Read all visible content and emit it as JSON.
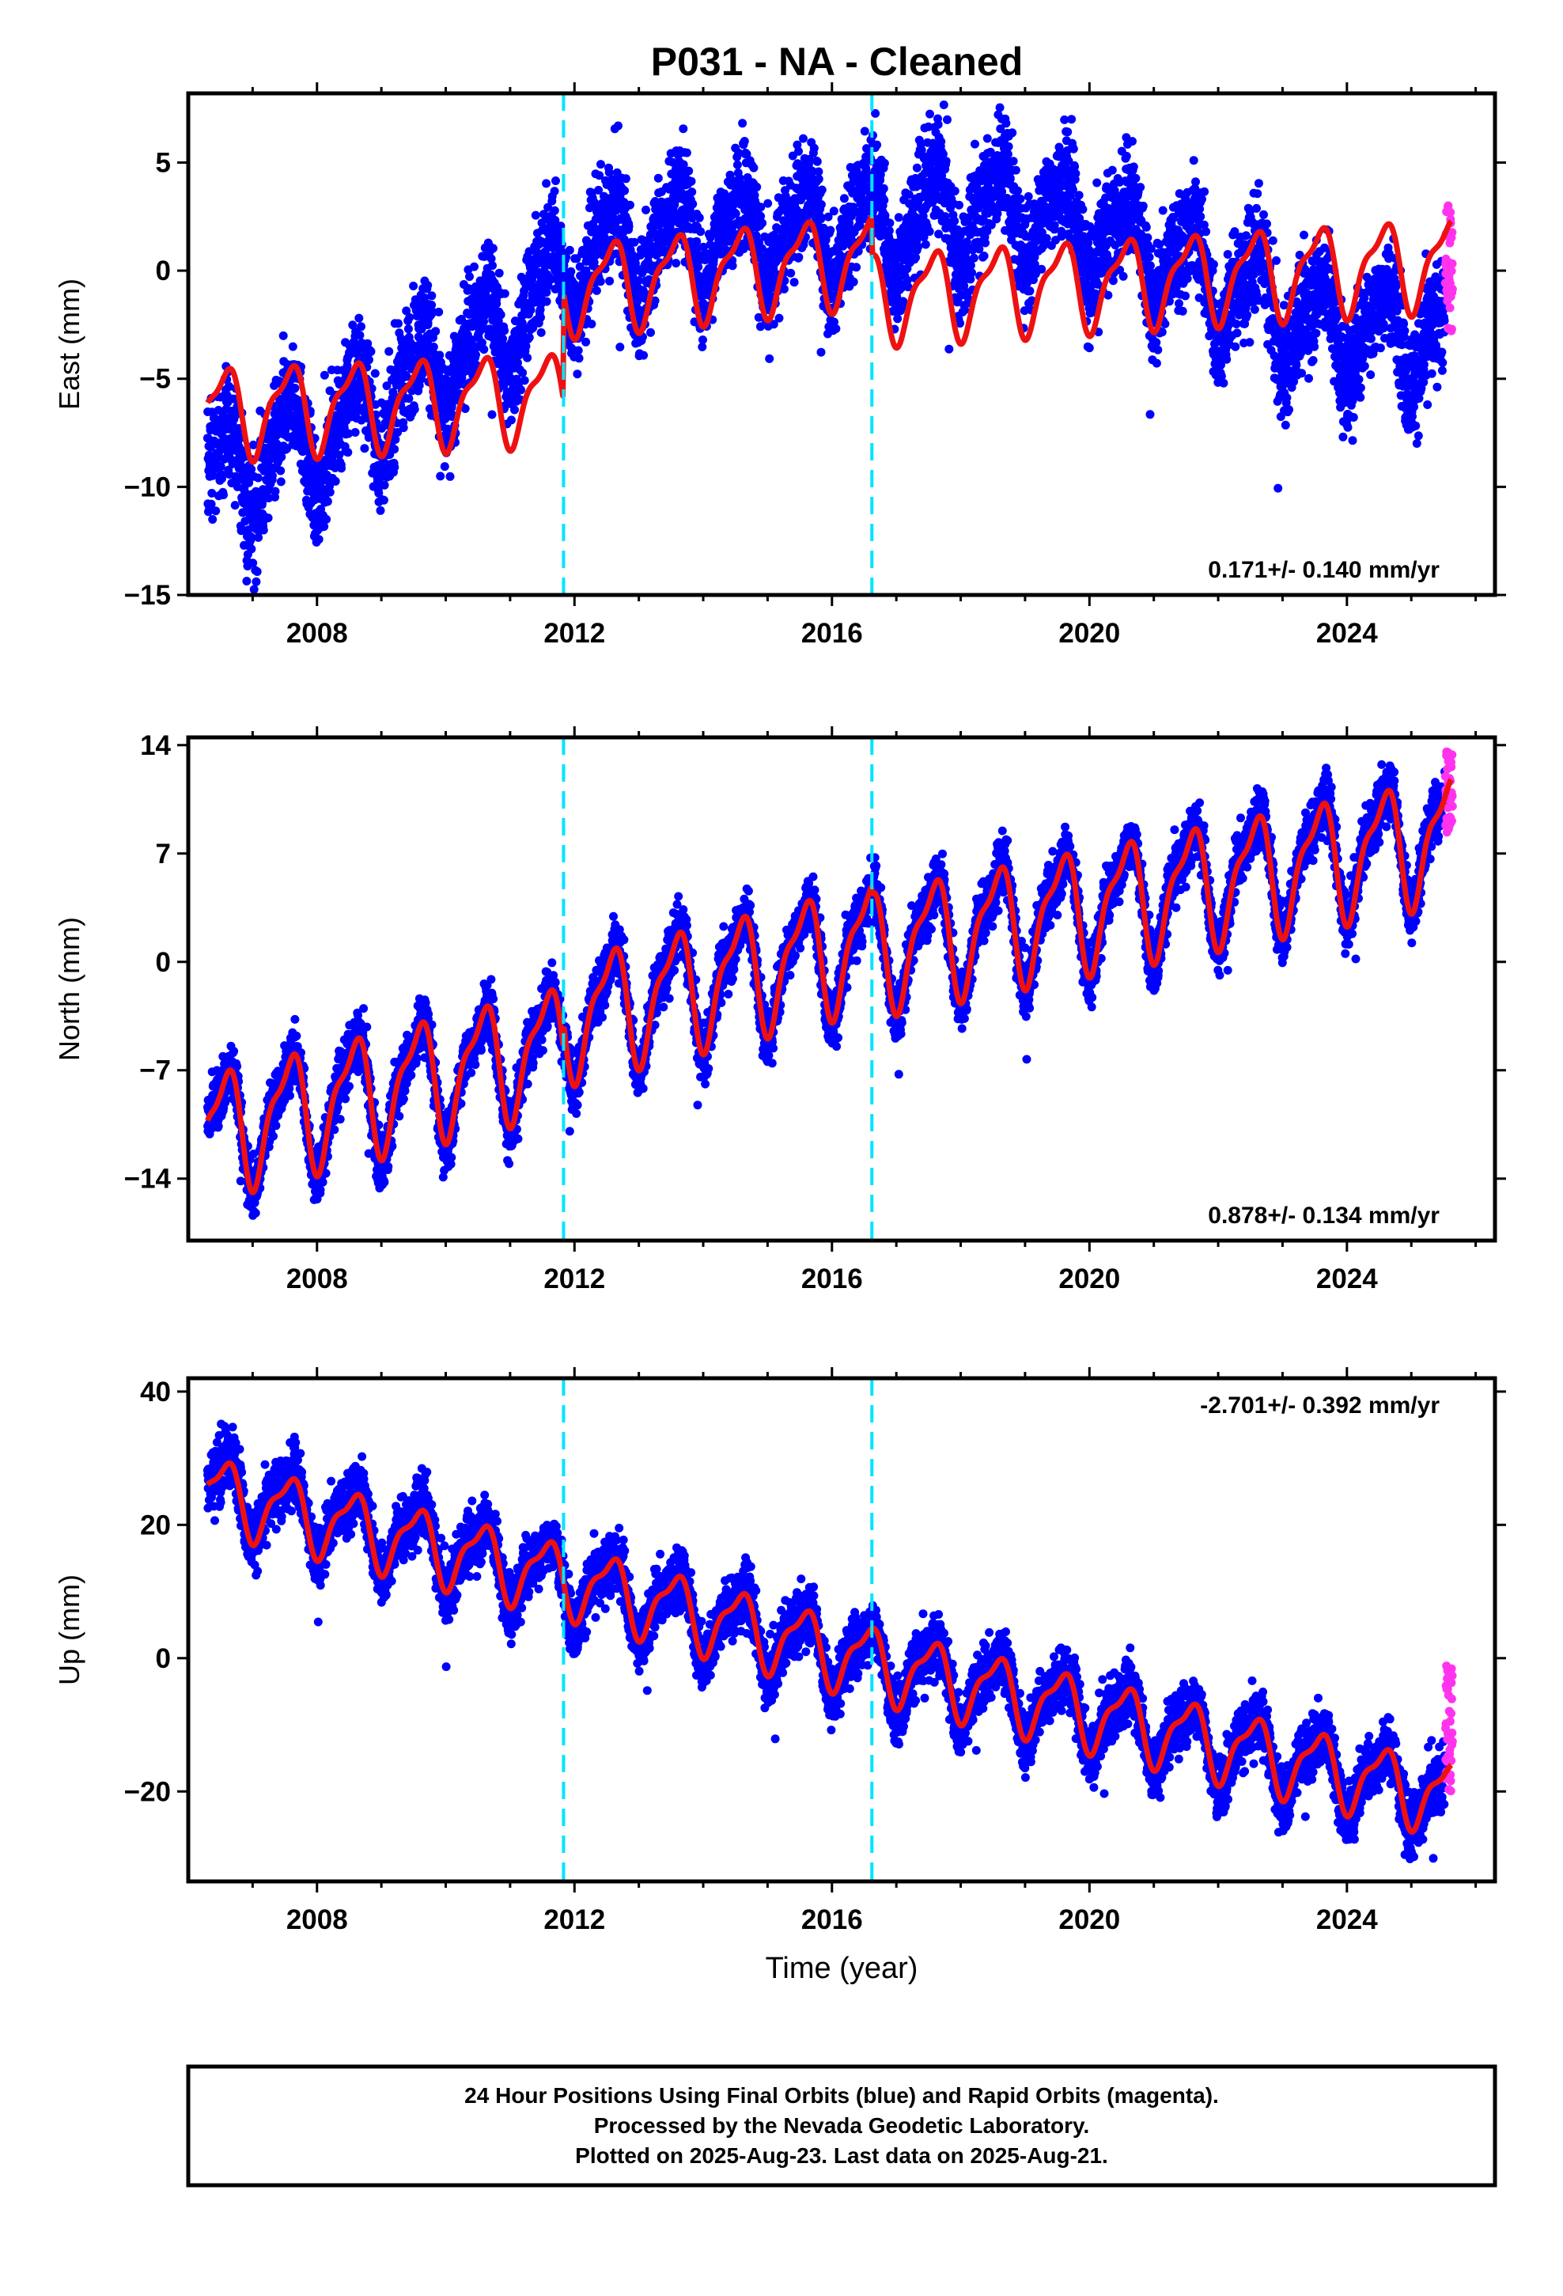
{
  "title": "P031  - NA - Cleaned",
  "colors": {
    "final_orbits": "#0000ff",
    "rapid_orbits": "#ff33ee",
    "model": "#ee1111",
    "offset_lines": "#00e5ff",
    "frame": "#000000"
  },
  "offsets": [
    2011.83,
    2016.62
  ],
  "chart_data": [
    {
      "type": "scatter",
      "ylabel": "East (mm)",
      "xlabel": "",
      "xlim": [
        2006.0,
        2026.3
      ],
      "ylim": [
        -15,
        8.2
      ],
      "yticks": [
        5,
        0,
        -5,
        -10,
        -15
      ],
      "ytick_labels": [
        "5",
        "0",
        "−5",
        "−10",
        "−15"
      ],
      "xticks": [
        2008,
        2012,
        2016,
        2020,
        2024
      ],
      "xtick_labels": [
        "2008",
        "2012",
        "2016",
        "2020",
        "2024"
      ],
      "grid": false,
      "rate": "0.171+/- 0.140 mm/yr",
      "rate_position": "bottom-right",
      "data_trend": [
        [
          2006.3,
          -9.5
        ],
        [
          2008,
          -8
        ],
        [
          2009.5,
          -5
        ],
        [
          2011,
          -2.5
        ],
        [
          2012,
          0.5
        ],
        [
          2014,
          1.8
        ],
        [
          2016,
          1.8
        ],
        [
          2017.5,
          2.5
        ],
        [
          2019,
          3
        ],
        [
          2020.5,
          1.5
        ],
        [
          2022,
          -0.5
        ],
        [
          2023.5,
          -2.5
        ],
        [
          2025.6,
          -3
        ]
      ],
      "data_noise": 1.8,
      "seasonal_amp": 2.0,
      "model_trend": [
        [
          2006.3,
          -6.5
        ],
        [
          2011.82,
          -5.8
        ],
        [
          2011.84,
          -0.8
        ],
        [
          2016.61,
          0.6
        ],
        [
          2016.63,
          -1.2
        ],
        [
          2025.6,
          0.4
        ]
      ],
      "model_amp": 1.9,
      "rapid_range": [
        -2.8,
        3.1
      ]
    },
    {
      "type": "scatter",
      "ylabel": "North (mm)",
      "xlabel": "",
      "xlim": [
        2006.0,
        2026.3
      ],
      "ylim": [
        -18,
        14.5
      ],
      "yticks": [
        14,
        7,
        0,
        -7,
        -14
      ],
      "ytick_labels": [
        "14",
        "7",
        "0",
        "−7",
        "−14"
      ],
      "xticks": [
        2008,
        2012,
        2016,
        2020,
        2024
      ],
      "xtick_labels": [
        "2008",
        "2012",
        "2016",
        "2020",
        "2024"
      ],
      "grid": false,
      "rate": "0.878+/- 0.134 mm/yr",
      "rate_position": "bottom-right",
      "data_trend": [
        [
          2006.3,
          -11
        ],
        [
          2011.8,
          -5.5
        ],
        [
          2011.9,
          -3.5
        ],
        [
          2016.6,
          1.3
        ],
        [
          2016.7,
          0.8
        ],
        [
          2025.6,
          8.5
        ]
      ],
      "data_noise": 1.3,
      "seasonal_amp": 3.6,
      "model_trend": [
        [
          2006.3,
          -11
        ],
        [
          2011.82,
          -5.3
        ],
        [
          2011.84,
          -3.6
        ],
        [
          2016.61,
          1.3
        ],
        [
          2016.63,
          0.8
        ],
        [
          2025.6,
          8.2
        ]
      ],
      "model_amp": 3.6,
      "rapid_range": [
        8.2,
        13.8
      ]
    },
    {
      "type": "scatter",
      "ylabel": "Up (mm)",
      "xlabel": "Time (year)",
      "xlim": [
        2006.0,
        2026.3
      ],
      "ylim": [
        -33.5,
        42
      ],
      "yticks": [
        40,
        20,
        0,
        -20
      ],
      "ytick_labels": [
        "40",
        "20",
        "0",
        "−20"
      ],
      "xticks": [
        2008,
        2012,
        2016,
        2020,
        2024
      ],
      "xtick_labels": [
        "2008",
        "2012",
        "2016",
        "2020",
        "2024"
      ],
      "grid": false,
      "rate": "-2.701+/- 0.392 mm/yr",
      "rate_position": "top-right",
      "data_trend": [
        [
          2006.3,
          26
        ],
        [
          2011.8,
          12
        ],
        [
          2016.6,
          -0.5
        ],
        [
          2025.6,
          -21
        ]
      ],
      "data_noise": 3.2,
      "seasonal_amp": 5.2,
      "model_trend": [
        [
          2006.3,
          25
        ],
        [
          2011.8,
          12
        ],
        [
          2016.6,
          -0.5
        ],
        [
          2025.6,
          -21
        ]
      ],
      "model_amp": 5.0,
      "rapid_range": [
        -20,
        -1
      ]
    }
  ],
  "footer": {
    "line1": "24 Hour Positions Using Final Orbits (blue) and Rapid Orbits (magenta).",
    "line2": "Processed by the Nevada Geodetic Laboratory.",
    "line3": "Plotted on 2025-Aug-23. Last data on 2025-Aug-21."
  }
}
